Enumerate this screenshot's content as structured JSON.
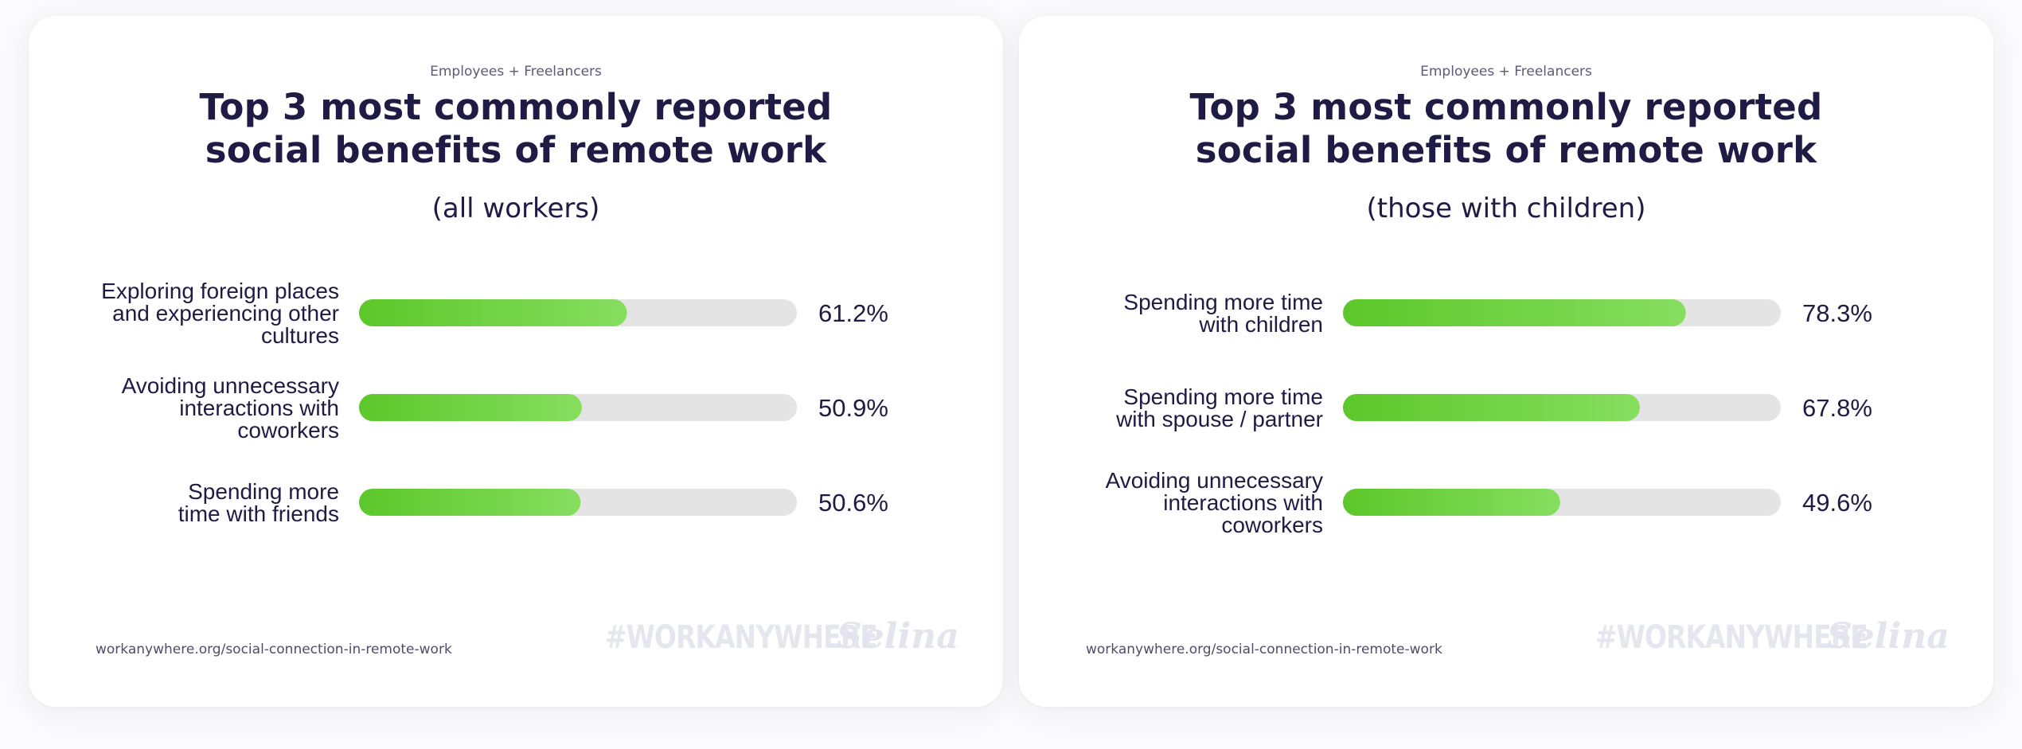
{
  "colors": {
    "bar_gradient_start": "#5cc72a",
    "bar_gradient_end": "#86de5f",
    "track": "#e4e4e4",
    "title": "#1e1b45",
    "label": "#1e1b45"
  },
  "chart_data": [
    {
      "type": "bar",
      "orientation": "horizontal",
      "eyebrow": "Employees + Freelancers",
      "title_lines": [
        "Top 3 most commonly reported",
        "social benefits of remote work"
      ],
      "subtitle": "(all workers)",
      "xlim": [
        0,
        100
      ],
      "categories": [
        [
          "Exploring foreign places",
          "and experiencing other",
          "cultures"
        ],
        [
          "Avoiding unnecessary",
          "interactions with",
          "coworkers"
        ],
        [
          "Spending more",
          "time with friends"
        ]
      ],
      "values": [
        61.2,
        50.9,
        50.6
      ],
      "value_labels": [
        "61.2%",
        "50.9%",
        "50.6%"
      ],
      "source": "workanywhere.org/social-connection-in-remote-work",
      "hashtag": "#WORKANYWHERE",
      "brand": "Selina"
    },
    {
      "type": "bar",
      "orientation": "horizontal",
      "eyebrow": "Employees + Freelancers",
      "title_lines": [
        "Top 3 most commonly reported",
        "social benefits of remote work"
      ],
      "subtitle": "(those with children)",
      "xlim": [
        0,
        100
      ],
      "categories": [
        [
          "Spending more time",
          "with children"
        ],
        [
          "Spending more time",
          "with spouse / partner"
        ],
        [
          "Avoiding unnecessary",
          "interactions with",
          "coworkers"
        ]
      ],
      "values": [
        78.3,
        67.8,
        49.6
      ],
      "value_labels": [
        "78.3%",
        "67.8%",
        "49.6%"
      ],
      "source": "workanywhere.org/social-connection-in-remote-work",
      "hashtag": "#WORKANYWHERE",
      "brand": "Selina"
    }
  ]
}
